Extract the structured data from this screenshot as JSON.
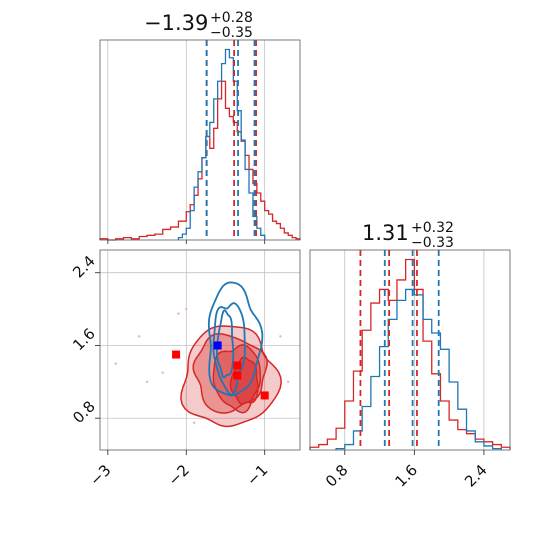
{
  "chart_data": {
    "type": "corner",
    "grid": true,
    "colors": {
      "red": "#d62728",
      "blue": "#1f77b4"
    },
    "titles": {
      "param1": {
        "median": "−1.39",
        "plus": "+0.28",
        "minus": "−0.35"
      },
      "param2": {
        "median": "1.31",
        "plus": "+0.32",
        "minus": "−0.33"
      }
    },
    "axes": {
      "x1": {
        "range": [
          -3.1,
          -0.55
        ],
        "ticks": [
          -3,
          -2,
          -1
        ],
        "tick_labels": [
          "−3",
          "−2",
          "−1"
        ]
      },
      "x2": {
        "range": [
          0.4,
          2.7
        ],
        "ticks": [
          0.8,
          1.6,
          2.4
        ],
        "tick_labels": [
          "0.8",
          "1.6",
          "2.4"
        ]
      },
      "y2": {
        "range": [
          0.45,
          2.65
        ],
        "ticks": [
          0.8,
          1.6,
          2.4
        ],
        "tick_labels": [
          "0.8",
          "1.6",
          "2.4"
        ]
      }
    },
    "histogram_param1": {
      "red": {
        "bins": [
          -3.1,
          -3.0,
          -2.9,
          -2.8,
          -2.7,
          -2.6,
          -2.5,
          -2.4,
          -2.3,
          -2.2,
          -2.1,
          -2.0,
          -1.95,
          -1.9,
          -1.85,
          -1.8,
          -1.75,
          -1.7,
          -1.65,
          -1.6,
          -1.55,
          -1.5,
          -1.45,
          -1.4,
          -1.35,
          -1.3,
          -1.25,
          -1.2,
          -1.15,
          -1.1,
          -1.05,
          -1.0,
          -0.95,
          -0.9,
          -0.85,
          -0.8,
          -0.75,
          -0.7,
          -0.65,
          -0.6,
          -0.55
        ],
        "counts": [
          1,
          0,
          1,
          2,
          1,
          3,
          4,
          5,
          9,
          11,
          16,
          24,
          30,
          38,
          52,
          70,
          88,
          78,
          95,
          120,
          135,
          112,
          105,
          100,
          92,
          84,
          72,
          60,
          48,
          40,
          33,
          25,
          22,
          16,
          14,
          10,
          6,
          4,
          2,
          1
        ]
      },
      "blue": {
        "bins": [
          -2.1,
          -2.05,
          -2.0,
          -1.95,
          -1.9,
          -1.85,
          -1.8,
          -1.75,
          -1.7,
          -1.65,
          -1.6,
          -1.55,
          -1.5,
          -1.45,
          -1.4,
          -1.35,
          -1.3,
          -1.25,
          -1.2,
          -1.15,
          -1.1,
          -1.05,
          -1.0
        ],
        "counts": [
          2,
          5,
          10,
          25,
          45,
          58,
          70,
          88,
          100,
          120,
          135,
          150,
          162,
          155,
          135,
          110,
          85,
          60,
          40,
          20,
          10,
          4
        ]
      },
      "red_quantiles": [
        -1.74,
        -1.39,
        -1.11
      ],
      "blue_quantiles": [
        -1.74,
        -1.34,
        -1.13
      ]
    },
    "histogram_param2": {
      "red": {
        "bins": [
          0.4,
          0.5,
          0.6,
          0.7,
          0.8,
          0.9,
          1.0,
          1.1,
          1.2,
          1.3,
          1.4,
          1.5,
          1.6,
          1.7,
          1.8,
          1.9,
          2.0,
          2.1,
          2.2,
          2.3,
          2.4,
          2.5,
          2.6,
          2.7
        ],
        "counts": [
          2,
          4,
          8,
          16,
          36,
          58,
          88,
          108,
          118,
          110,
          125,
          140,
          118,
          80,
          56,
          36,
          22,
          15,
          12,
          8,
          6,
          4,
          2
        ]
      },
      "blue": {
        "bins": [
          0.7,
          0.8,
          0.9,
          1.0,
          1.1,
          1.2,
          1.3,
          1.4,
          1.5,
          1.6,
          1.7,
          1.8,
          1.9,
          2.0,
          2.1,
          2.2,
          2.3,
          2.4,
          2.5,
          2.6
        ],
        "counts": [
          1,
          4,
          14,
          32,
          54,
          76,
          96,
          110,
          118,
          114,
          96,
          86,
          74,
          50,
          30,
          14,
          6,
          3,
          1
        ]
      },
      "red_quantiles": [
        0.98,
        1.31,
        1.63
      ],
      "blue_quantiles": [
        1.26,
        1.58,
        1.88
      ]
    },
    "scatter_2d": {
      "red_levels": [
        {
          "center": [
            -1.45,
            1.25
          ],
          "radii": [
            0.6,
            0.55
          ],
          "fill": 0.45
        },
        {
          "center": [
            -1.45,
            1.3
          ],
          "radii": [
            0.45,
            0.42
          ],
          "fill": 0.6
        },
        {
          "center": [
            -1.35,
            1.25
          ],
          "radii": [
            0.3,
            0.35
          ],
          "fill": 0.8
        },
        {
          "center": [
            -1.25,
            1.2
          ],
          "radii": [
            0.17,
            0.25
          ],
          "fill": 0.95
        }
      ],
      "blue_levels": [
        {
          "center": [
            -1.4,
            1.65
          ],
          "radii": [
            0.33,
            0.62
          ]
        },
        {
          "center": [
            -1.45,
            1.6
          ],
          "radii": [
            0.2,
            0.48
          ]
        },
        {
          "center": [
            -1.5,
            1.6
          ],
          "radii": [
            0.1,
            0.36
          ]
        }
      ],
      "red_markers": [
        [
          -2.13,
          1.5
        ],
        [
          -1.35,
          1.38
        ],
        [
          -1.35,
          1.27
        ],
        [
          -1.0,
          1.05
        ]
      ],
      "blue_markers": [
        [
          -1.6,
          1.6
        ]
      ],
      "background_scatter": [
        [
          -2.6,
          1.7
        ],
        [
          -2.3,
          1.3
        ],
        [
          -2.1,
          1.95
        ],
        [
          -1.9,
          0.75
        ],
        [
          -2.5,
          1.2
        ],
        [
          -2.0,
          2.0
        ],
        [
          -0.8,
          1.7
        ],
        [
          -0.7,
          1.2
        ],
        [
          -2.9,
          1.4
        ]
      ]
    }
  }
}
